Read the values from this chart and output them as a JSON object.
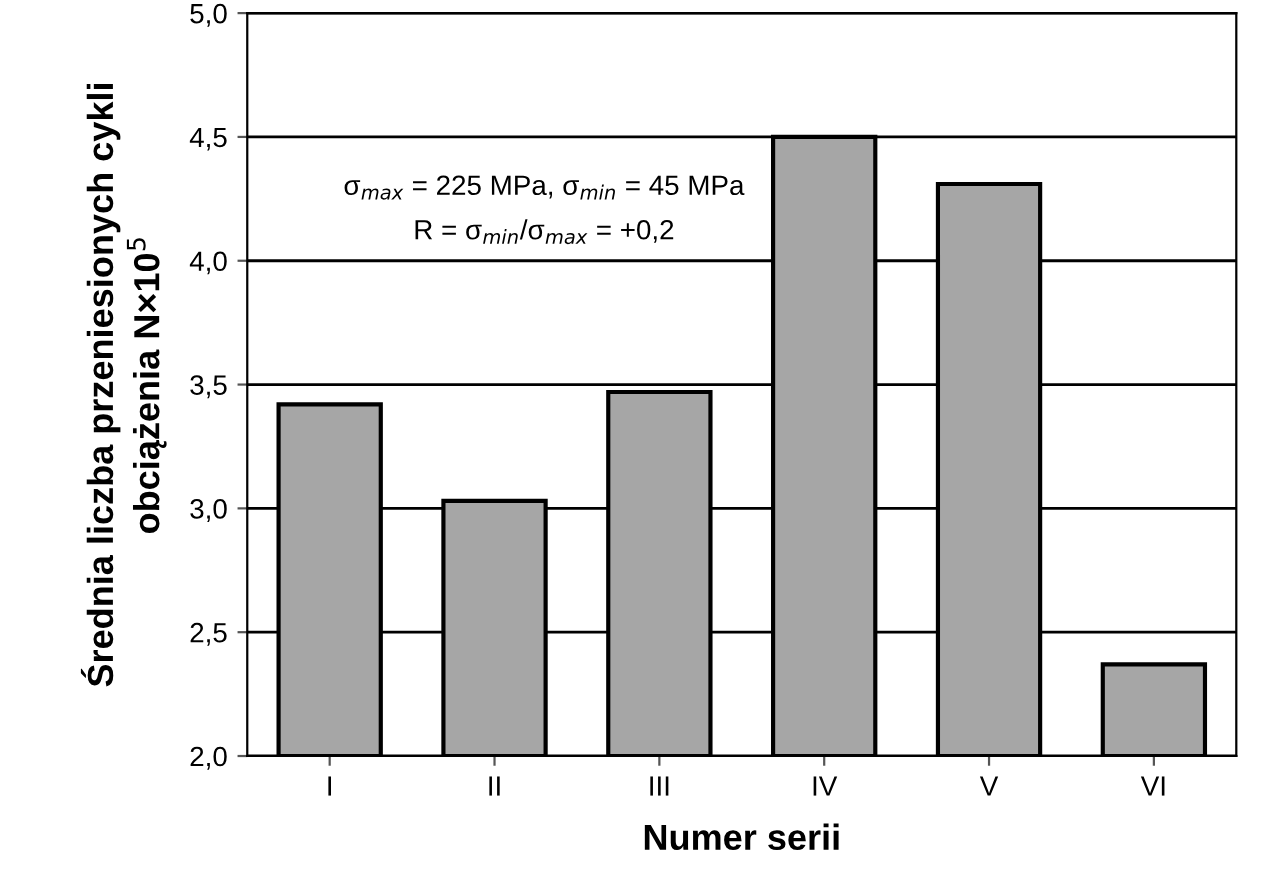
{
  "chart_data": {
    "type": "bar",
    "xlabel": "Numer serii",
    "ylabel": "Średnia liczba przeniesionych cykli\nobciążenia N×10$^{5}$",
    "categories": [
      "I",
      "II",
      "III",
      "IV",
      "V",
      "VI"
    ],
    "values": [
      3.42,
      3.03,
      3.47,
      4.5,
      4.31,
      2.37
    ],
    "color": "#a6a6a6",
    "ylim": [
      2.0,
      5.0
    ],
    "yticks": [
      {
        "value": 2.0,
        "label": "2,0"
      },
      {
        "value": 2.5,
        "label": "2,5"
      },
      {
        "value": 3.0,
        "label": "3,0"
      },
      {
        "value": 3.5,
        "label": "3,5"
      },
      {
        "value": 4.0,
        "label": "4,0"
      },
      {
        "value": 4.5,
        "label": "4,5"
      },
      {
        "value": 5.0,
        "label": "5,0"
      }
    ],
    "grid": "y",
    "annotations": [
      "σ$_{max}$ = 225 MPa, σ$_{min}$ = 45 MPa",
      "R = σ$_{min}$/σ$_{max}$ = +0,2"
    ]
  }
}
